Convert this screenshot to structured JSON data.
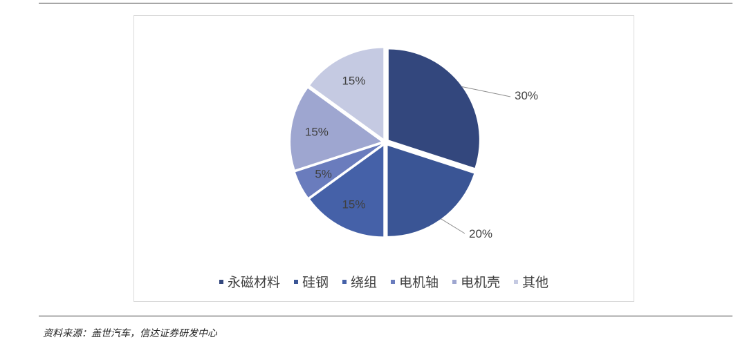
{
  "chart_data": {
    "type": "pie",
    "title": "",
    "slices": [
      {
        "label": "永磁材料",
        "value": 30,
        "display": "30%",
        "color": "#33477d"
      },
      {
        "label": "硅钢",
        "value": 20,
        "display": "20%",
        "color": "#3a5595"
      },
      {
        "label": "绕组",
        "value": 15,
        "display": "15%",
        "color": "#4561a8"
      },
      {
        "label": "电机轴",
        "value": 5,
        "display": "5%",
        "color": "#6a7cbd"
      },
      {
        "label": "电机壳",
        "value": 15,
        "display": "15%",
        "color": "#9ea6d0"
      },
      {
        "label": "其他",
        "value": 15,
        "display": "15%",
        "color": "#c5cae2"
      }
    ],
    "legend_position": "bottom"
  },
  "source": "资料来源：盖世汽车，信达证券研发中心"
}
